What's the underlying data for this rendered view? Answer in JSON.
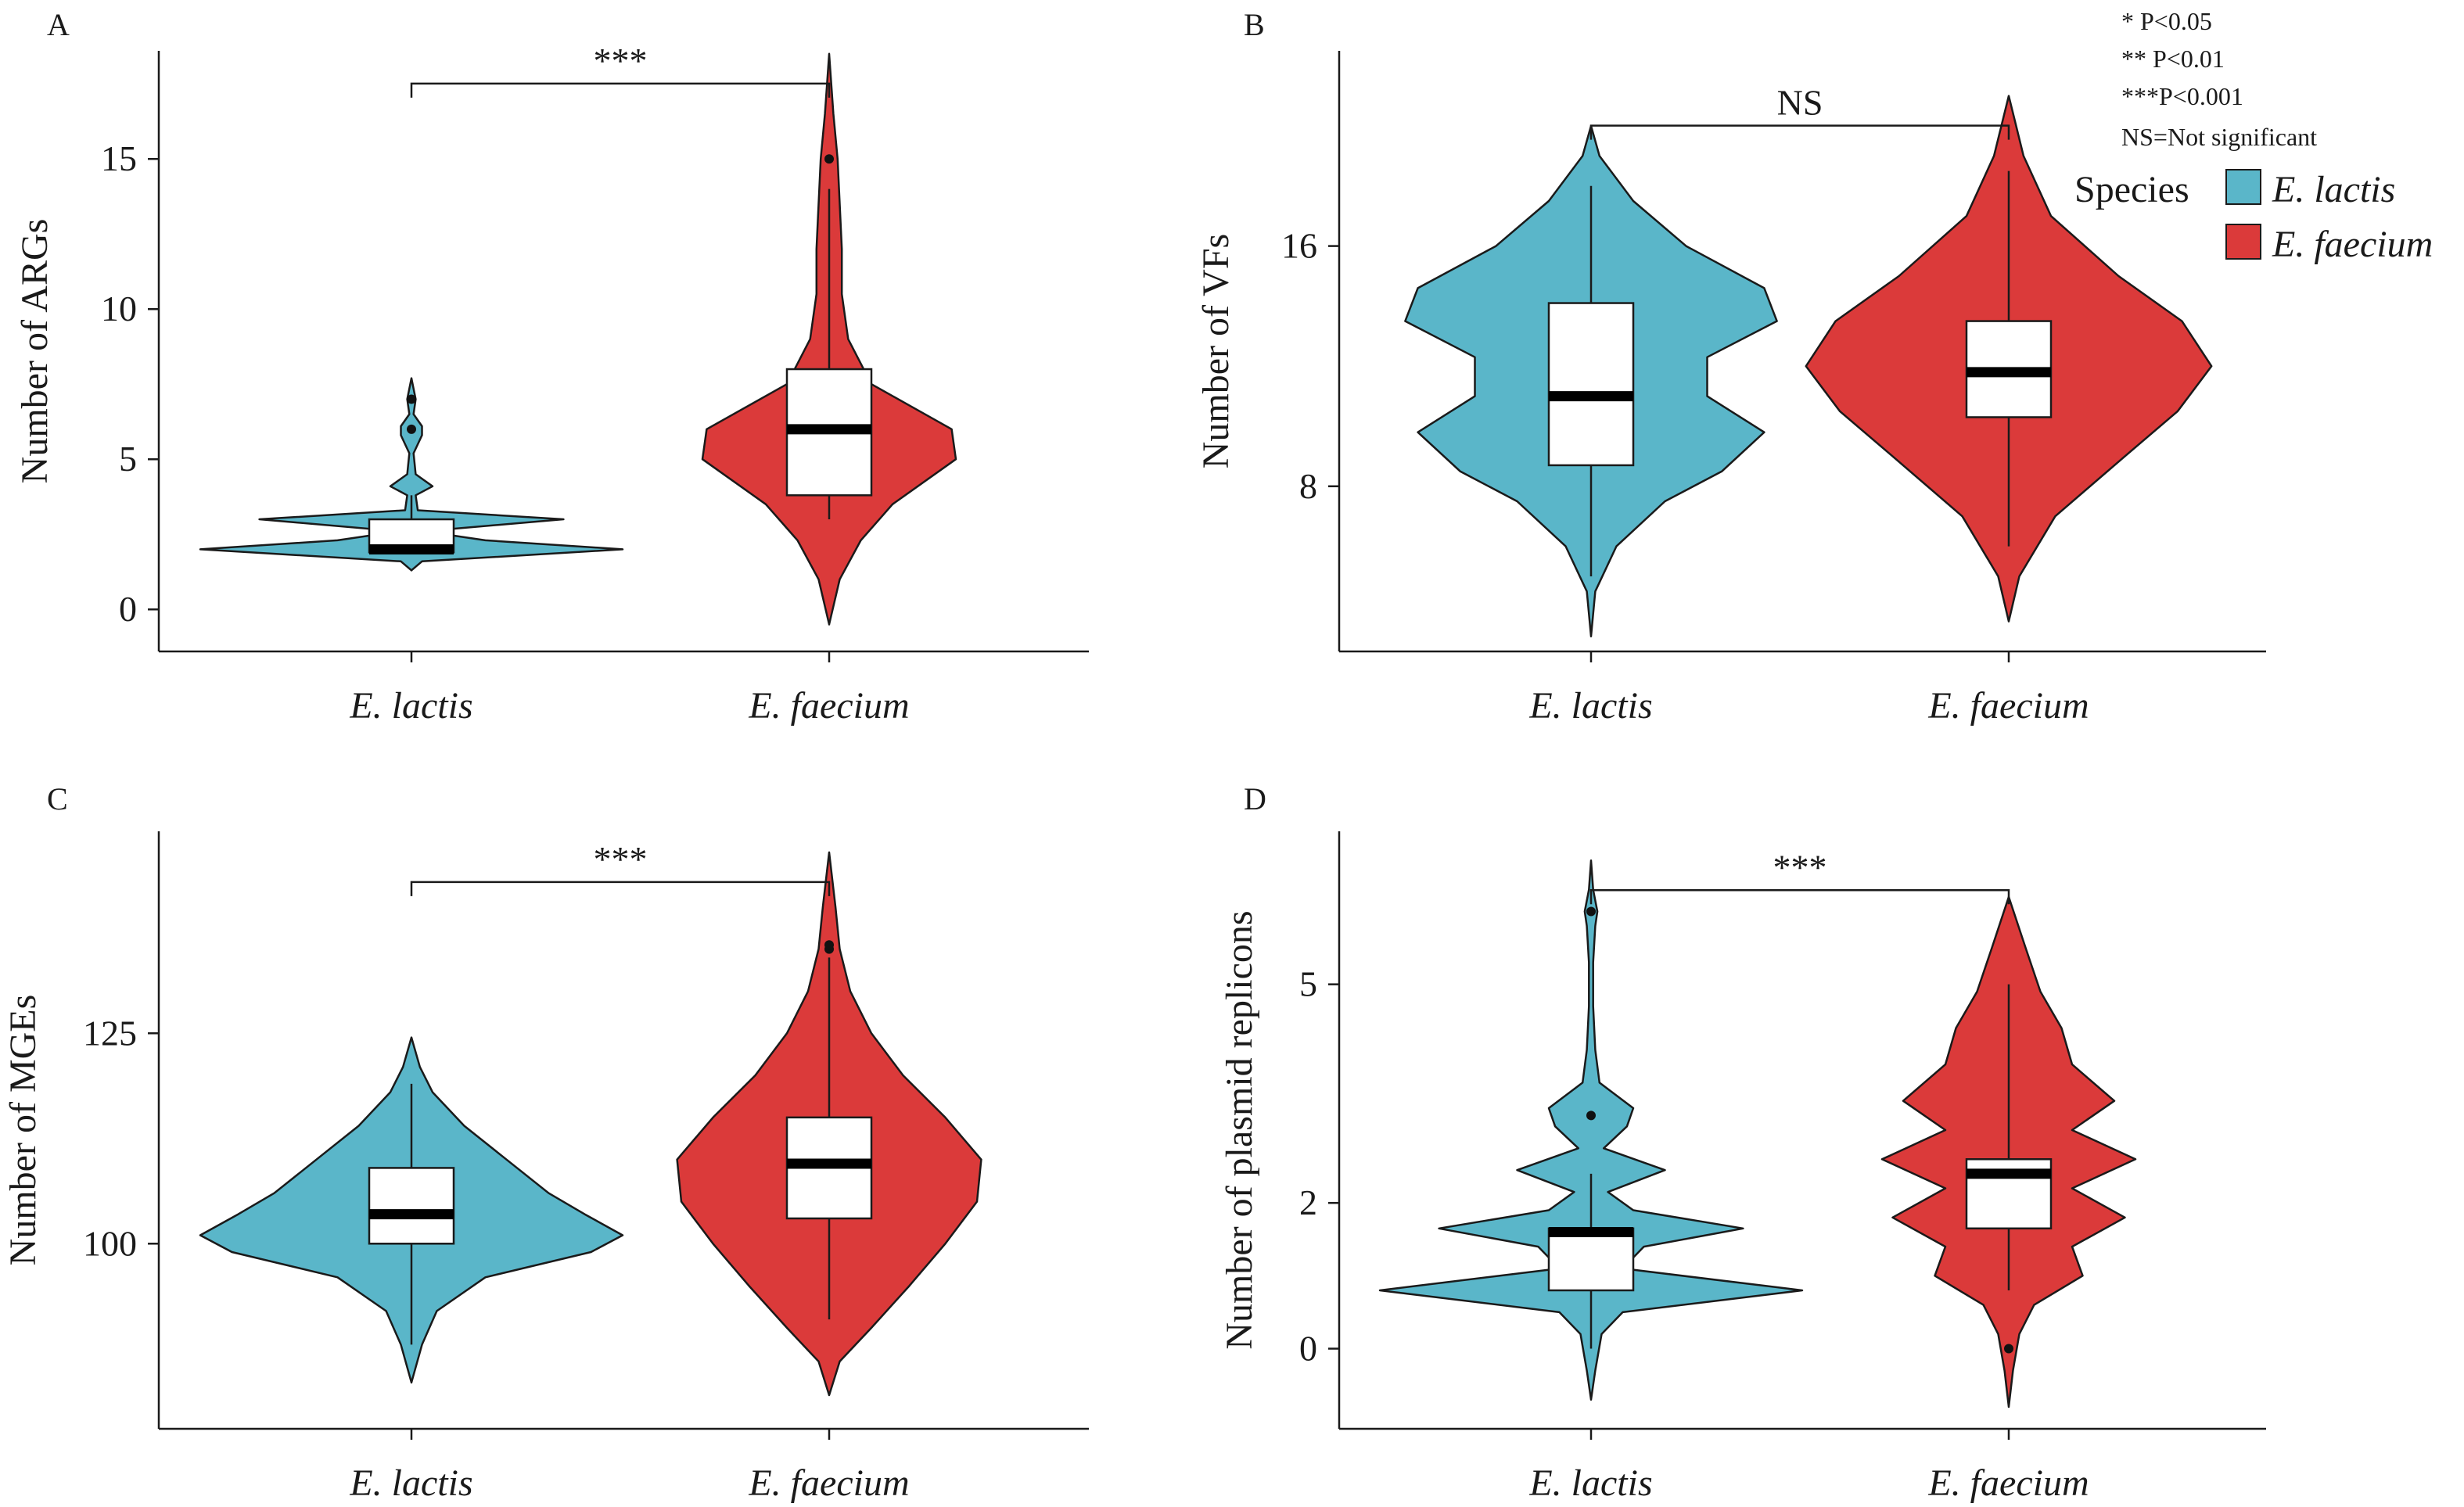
{
  "figure": {
    "colors": {
      "E. lactis": "#5ab6c9",
      "E. faecium": "#db3a3a"
    },
    "legend": {
      "title": "Species",
      "items": [
        "E. lactis",
        "E. faecium"
      ],
      "notes": [
        "*    P<0.05",
        "**  P<0.01",
        "***P<0.001",
        "NS=Not significant"
      ]
    }
  },
  "chart_data": [
    {
      "type": "violin",
      "panel": "A",
      "ylabel": "Number of ARGs",
      "categories": [
        "E. lactis",
        "E. faecium"
      ],
      "yticks": [
        0,
        5,
        10,
        15
      ],
      "ylim": [
        -1.4,
        18.6
      ],
      "significance": "***",
      "groups": [
        {
          "name": "E. lactis",
          "min": 1.3,
          "max": 7.7,
          "q1": 1.9,
          "median": 2.0,
          "q3": 3.0,
          "whisker_low": 1.9,
          "whisker_high": 3.8,
          "outliers": [
            6.0,
            7.0
          ],
          "density": [
            [
              1.3,
              0.0
            ],
            [
              1.6,
              0.05
            ],
            [
              2.0,
              1.0
            ],
            [
              2.3,
              0.35
            ],
            [
              2.6,
              0.06
            ],
            [
              3.0,
              0.72
            ],
            [
              3.3,
              0.03
            ],
            [
              3.8,
              0.02
            ],
            [
              4.1,
              0.1
            ],
            [
              4.5,
              0.02
            ],
            [
              5.2,
              0.01
            ],
            [
              5.8,
              0.05
            ],
            [
              6.1,
              0.05
            ],
            [
              6.5,
              0.01
            ],
            [
              7.0,
              0.02
            ],
            [
              7.7,
              0.0
            ]
          ]
        },
        {
          "name": "E. faecium",
          "min": -0.5,
          "max": 18.5,
          "q1": 3.8,
          "median": 6.0,
          "q3": 8.0,
          "whisker_low": 3.0,
          "whisker_high": 14.0,
          "outliers": [
            15.0
          ],
          "density": [
            [
              -0.5,
              0.0
            ],
            [
              1.0,
              0.05
            ],
            [
              2.3,
              0.15
            ],
            [
              3.5,
              0.3
            ],
            [
              5.0,
              0.6
            ],
            [
              6.0,
              0.58
            ],
            [
              7.5,
              0.2
            ],
            [
              9.0,
              0.09
            ],
            [
              10.5,
              0.06
            ],
            [
              12.0,
              0.06
            ],
            [
              13.5,
              0.05
            ],
            [
              15.0,
              0.04
            ],
            [
              16.5,
              0.02
            ],
            [
              18.5,
              0.0
            ]
          ]
        }
      ]
    },
    {
      "type": "violin",
      "panel": "B",
      "ylabel": "Number of VFs",
      "categories": [
        "E. lactis",
        "E. faecium"
      ],
      "yticks": [
        8,
        16
      ],
      "ylim": [
        2.5,
        22.5
      ],
      "significance": "NS",
      "groups": [
        {
          "name": "E. lactis",
          "min": 3.0,
          "max": 20.0,
          "q1": 8.7,
          "median": 11.0,
          "q3": 14.1,
          "whisker_low": 5.0,
          "whisker_high": 18.0,
          "outliers": [],
          "density": [
            [
              3.0,
              0.0
            ],
            [
              4.5,
              0.02
            ],
            [
              6.0,
              0.12
            ],
            [
              7.5,
              0.35
            ],
            [
              8.5,
              0.62
            ],
            [
              9.8,
              0.82
            ],
            [
              11.0,
              0.55
            ],
            [
              12.3,
              0.55
            ],
            [
              13.5,
              0.88
            ],
            [
              14.6,
              0.82
            ],
            [
              16.0,
              0.45
            ],
            [
              17.5,
              0.2
            ],
            [
              19.0,
              0.04
            ],
            [
              20.0,
              0.0
            ]
          ]
        },
        {
          "name": "E. faecium",
          "min": 3.5,
          "max": 21.0,
          "q1": 10.3,
          "median": 11.8,
          "q3": 13.5,
          "whisker_low": 6.0,
          "whisker_high": 18.5,
          "outliers": [],
          "density": [
            [
              3.5,
              0.0
            ],
            [
              5.0,
              0.05
            ],
            [
              7.0,
              0.22
            ],
            [
              9.0,
              0.55
            ],
            [
              10.5,
              0.8
            ],
            [
              12.0,
              0.96
            ],
            [
              13.5,
              0.82
            ],
            [
              15.0,
              0.52
            ],
            [
              17.0,
              0.2
            ],
            [
              19.0,
              0.07
            ],
            [
              21.0,
              0.0
            ]
          ]
        }
      ]
    },
    {
      "type": "violin",
      "panel": "C",
      "ylabel": "Number of MGEs",
      "categories": [
        "E. lactis",
        "E. faecium"
      ],
      "yticks": [
        100,
        125
      ],
      "ylim": [
        78,
        149
      ],
      "significance": "***",
      "groups": [
        {
          "name": "E. lactis",
          "min": 83.5,
          "max": 124.5,
          "q1": 100.0,
          "median": 103.5,
          "q3": 109.0,
          "whisker_low": 88.0,
          "whisker_high": 119.0,
          "outliers": [],
          "density": [
            [
              83.5,
              0.0
            ],
            [
              88.0,
              0.05
            ],
            [
              92.0,
              0.12
            ],
            [
              96.0,
              0.35
            ],
            [
              99.0,
              0.85
            ],
            [
              101.0,
              1.0
            ],
            [
              103.5,
              0.82
            ],
            [
              106.0,
              0.65
            ],
            [
              110.0,
              0.45
            ],
            [
              114.0,
              0.25
            ],
            [
              118.0,
              0.1
            ],
            [
              121.0,
              0.04
            ],
            [
              124.5,
              0.0
            ]
          ]
        },
        {
          "name": "E. faecium",
          "min": 82.0,
          "max": 146.5,
          "q1": 103.0,
          "median": 109.5,
          "q3": 115.0,
          "whisker_low": 91.0,
          "whisker_high": 134.0,
          "outliers": [
            135.0,
            135.5
          ],
          "density": [
            [
              82.0,
              0.0
            ],
            [
              86.0,
              0.05
            ],
            [
              90.0,
              0.2
            ],
            [
              95.0,
              0.38
            ],
            [
              100.0,
              0.55
            ],
            [
              105.0,
              0.7
            ],
            [
              110.0,
              0.72
            ],
            [
              115.0,
              0.55
            ],
            [
              120.0,
              0.35
            ],
            [
              125.0,
              0.2
            ],
            [
              130.0,
              0.1
            ],
            [
              135.0,
              0.05
            ],
            [
              140.0,
              0.03
            ],
            [
              146.5,
              0.0
            ]
          ]
        }
      ]
    },
    {
      "type": "violin",
      "panel": "D",
      "ylabel": "Number of plasmid replicons",
      "categories": [
        "E. lactis",
        "E. faecium"
      ],
      "yticks": [
        0,
        2,
        5
      ],
      "ylim": [
        -1.1,
        7.1
      ],
      "significance": "***",
      "groups": [
        {
          "name": "E. lactis",
          "min": -0.7,
          "max": 6.7,
          "q1": 0.8,
          "median": 1.6,
          "q3": 1.65,
          "whisker_low": 0.0,
          "whisker_high": 2.4,
          "outliers": [
            6.0,
            3.2
          ],
          "density": [
            [
              -0.7,
              0.0
            ],
            [
              -0.3,
              0.02
            ],
            [
              0.2,
              0.05
            ],
            [
              0.5,
              0.15
            ],
            [
              0.8,
              1.0
            ],
            [
              1.1,
              0.15
            ],
            [
              1.4,
              0.25
            ],
            [
              1.65,
              0.72
            ],
            [
              1.9,
              0.2
            ],
            [
              2.15,
              0.08
            ],
            [
              2.45,
              0.35
            ],
            [
              2.75,
              0.06
            ],
            [
              3.05,
              0.17
            ],
            [
              3.3,
              0.2
            ],
            [
              3.65,
              0.04
            ],
            [
              4.1,
              0.02
            ],
            [
              4.7,
              0.01
            ],
            [
              5.3,
              0.01
            ],
            [
              5.8,
              0.02
            ],
            [
              6.0,
              0.03
            ],
            [
              6.3,
              0.01
            ],
            [
              6.7,
              0.0
            ]
          ]
        },
        {
          "name": "E. faecium",
          "min": -0.8,
          "max": 6.2,
          "q1": 1.65,
          "median": 2.4,
          "q3": 2.6,
          "whisker_low": 0.8,
          "whisker_high": 5.0,
          "outliers": [
            0.0
          ],
          "density": [
            [
              -0.8,
              0.0
            ],
            [
              -0.3,
              0.02
            ],
            [
              0.2,
              0.05
            ],
            [
              0.6,
              0.12
            ],
            [
              1.0,
              0.35
            ],
            [
              1.4,
              0.3
            ],
            [
              1.8,
              0.55
            ],
            [
              2.2,
              0.3
            ],
            [
              2.6,
              0.6
            ],
            [
              3.0,
              0.3
            ],
            [
              3.4,
              0.5
            ],
            [
              3.9,
              0.3
            ],
            [
              4.4,
              0.25
            ],
            [
              4.9,
              0.15
            ],
            [
              5.5,
              0.08
            ],
            [
              6.2,
              0.0
            ]
          ]
        }
      ]
    }
  ]
}
